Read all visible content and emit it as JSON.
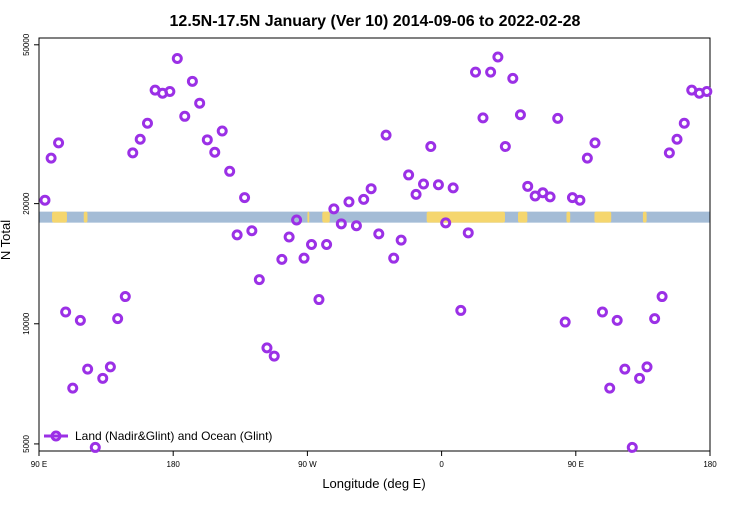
{
  "chart_data": {
    "type": "scatter",
    "title": "12.5N-17.5N January (Ver 10)   2014-09-06 to 2022-02-28",
    "xlabel": "Longitude (deg E)",
    "ylabel": "N Total",
    "y_scale": "log",
    "xlim": [
      90,
      450
    ],
    "ylim": [
      4800,
      52000
    ],
    "x_ticks": [
      {
        "value": 90,
        "label": "90 E"
      },
      {
        "value": 162,
        "label": "180"
      },
      {
        "value": 234,
        "label": "90 W"
      },
      {
        "value": 306,
        "label": "0"
      },
      {
        "value": 378,
        "label": "90 E"
      },
      {
        "value": 450,
        "label": "180"
      }
    ],
    "y_ticks": [
      {
        "value": 5000,
        "label": "5000"
      },
      {
        "value": 10000,
        "label": "10000"
      },
      {
        "value": 20000,
        "label": "20000"
      },
      {
        "value": 50000,
        "label": "50000"
      }
    ],
    "legend": {
      "label": "Land (Nadir&Glint) and Ocean (Glint)",
      "position": "bottom-left"
    },
    "colors": {
      "points": "#9b30e6",
      "ocean_strip": "#a4bcd6",
      "land_strip": "#f5d66e"
    },
    "map_strip": {
      "ocean_level": 18500,
      "land_segments": [
        [
          97,
          105
        ],
        [
          114,
          116
        ],
        [
          234,
          235
        ],
        [
          242,
          246
        ],
        [
          298,
          340
        ],
        [
          347,
          352
        ],
        [
          373,
          375
        ],
        [
          388,
          397
        ],
        [
          414,
          416
        ]
      ]
    },
    "series": [
      {
        "name": "Land (Nadir&Glint) and Ocean (Glint)",
        "points": [
          [
            93.2,
            20400
          ],
          [
            96.5,
            26000
          ],
          [
            100.5,
            28400
          ],
          [
            104.3,
            10700
          ],
          [
            108.1,
            6900
          ],
          [
            112.2,
            10200
          ],
          [
            116.1,
            7700
          ],
          [
            120.2,
            4900
          ],
          [
            124.2,
            7300
          ],
          [
            128.3,
            7800
          ],
          [
            132.2,
            10300
          ],
          [
            136.3,
            11700
          ],
          [
            140.3,
            26800
          ],
          [
            144.3,
            29000
          ],
          [
            148.2,
            31800
          ],
          [
            152.3,
            38500
          ],
          [
            156.3,
            37800
          ],
          [
            160.2,
            38200
          ],
          [
            164.2,
            46200
          ],
          [
            168.2,
            33100
          ],
          [
            172.3,
            40500
          ],
          [
            176.2,
            35700
          ],
          [
            180.3,
            28900
          ],
          [
            184.3,
            26900
          ],
          [
            188.3,
            30400
          ],
          [
            192.3,
            24100
          ],
          [
            196.3,
            16700
          ],
          [
            200.3,
            20700
          ],
          [
            204.2,
            17100
          ],
          [
            208.2,
            12900
          ],
          [
            212.3,
            8700
          ],
          [
            216.2,
            8300
          ],
          [
            220.3,
            14500
          ],
          [
            224.2,
            16500
          ],
          [
            228.2,
            18200
          ],
          [
            232.2,
            14600
          ],
          [
            236.2,
            15800
          ],
          [
            240.2,
            11500
          ],
          [
            244.3,
            15800
          ],
          [
            248.2,
            19400
          ],
          [
            252.2,
            17800
          ],
          [
            256.3,
            20200
          ],
          [
            260.3,
            17600
          ],
          [
            264.2,
            20500
          ],
          [
            268.2,
            21800
          ],
          [
            272.3,
            16800
          ],
          [
            276.2,
            29700
          ],
          [
            280.3,
            14600
          ],
          [
            284.3,
            16200
          ],
          [
            288.3,
            23600
          ],
          [
            292.3,
            21100
          ],
          [
            296.3,
            22400
          ],
          [
            300.2,
            27800
          ],
          [
            304.3,
            22300
          ],
          [
            308.2,
            17900
          ],
          [
            312.2,
            21900
          ],
          [
            316.3,
            10800
          ],
          [
            320.3,
            16900
          ],
          [
            324.2,
            42700
          ],
          [
            328.2,
            32800
          ],
          [
            332.3,
            42700
          ],
          [
            336.2,
            46600
          ],
          [
            340.2,
            27800
          ],
          [
            344.2,
            41200
          ],
          [
            348.3,
            33400
          ],
          [
            352.2,
            22100
          ],
          [
            356.2,
            20900
          ],
          [
            360.3,
            21300
          ],
          [
            364.2,
            20800
          ],
          [
            368.3,
            32700
          ],
          [
            372.3,
            10100
          ],
          [
            376.2,
            20700
          ],
          [
            380.2,
            20400
          ],
          [
            384.2,
            26000
          ],
          [
            388.3,
            28400
          ],
          [
            392.3,
            10700
          ],
          [
            396.2,
            6900
          ],
          [
            400.2,
            10200
          ],
          [
            404.3,
            7700
          ],
          [
            408.3,
            4900
          ],
          [
            412.2,
            7300
          ],
          [
            416.2,
            7800
          ],
          [
            420.3,
            10300
          ],
          [
            424.3,
            11700
          ],
          [
            428.2,
            26800
          ],
          [
            432.3,
            29000
          ],
          [
            436.2,
            31800
          ],
          [
            440.2,
            38500
          ],
          [
            444.3,
            37800
          ],
          [
            448.3,
            38200
          ]
        ]
      }
    ]
  }
}
